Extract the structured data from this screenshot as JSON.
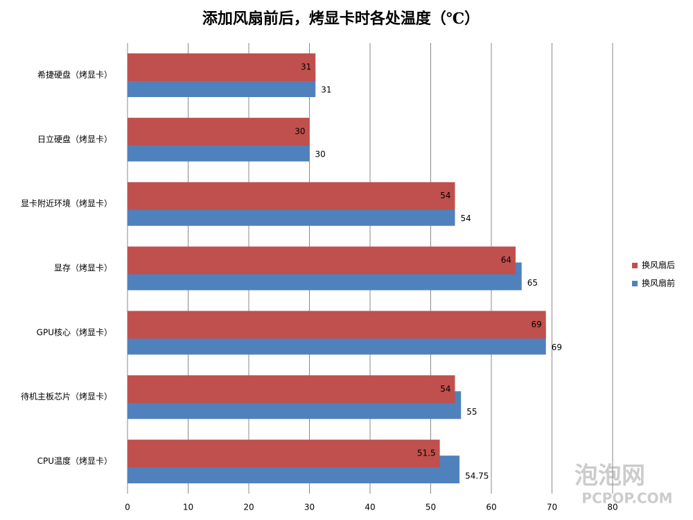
{
  "chart_data": {
    "type": "hbar",
    "title": "添加风扇前后，烤显卡时各处温度（℃）",
    "categories": [
      "希捷硬盘（烤显卡）",
      "日立硬盘（烤显卡）",
      "显卡附近环境（烤显卡）",
      "显存（烤显卡）",
      "GPU核心（烤显卡）",
      "待机主板芯片（烤显卡）",
      "CPU温度（烤显卡）"
    ],
    "series": [
      {
        "name": "换风扇后",
        "color": "#c0504d",
        "values": [
          31,
          30,
          54,
          64,
          69,
          54,
          51.5
        ]
      },
      {
        "name": "换风扇前",
        "color": "#4f81bd",
        "values": [
          31,
          30,
          54,
          65,
          69,
          55,
          54.75
        ]
      }
    ],
    "xlim": [
      0,
      80
    ],
    "xticks": [
      0,
      10,
      20,
      30,
      40,
      50,
      60,
      70,
      80
    ],
    "grid": true,
    "legend": "right",
    "watermark": [
      "泡泡网",
      "PCPOP.COM"
    ]
  }
}
